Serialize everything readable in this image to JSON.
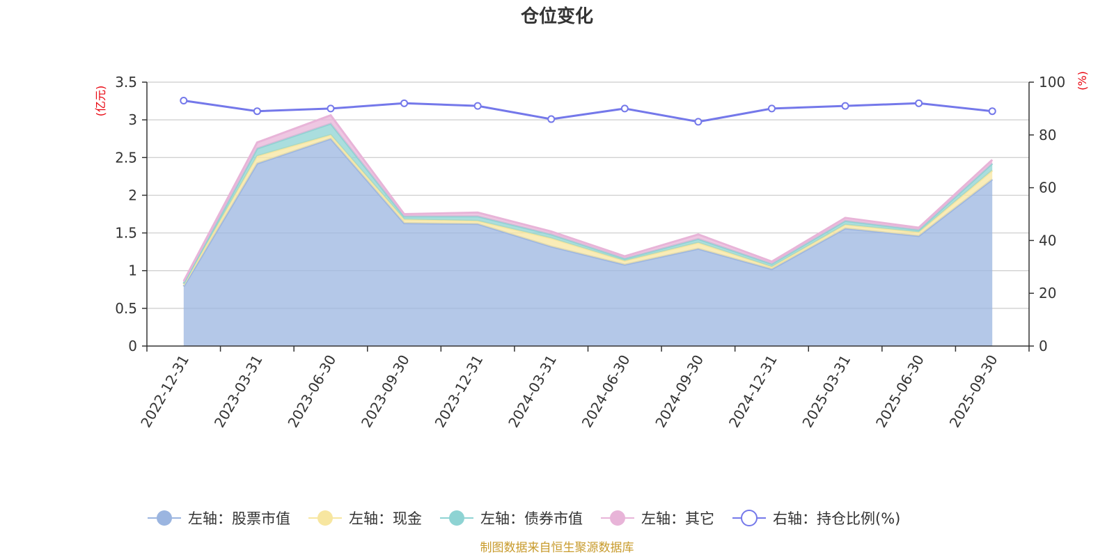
{
  "chart_data": {
    "type": "area",
    "title": "仓位变化",
    "left_axis_unit": "(亿元)",
    "right_axis_unit": "(%)",
    "categories": [
      "2022-12-31",
      "2023-03-31",
      "2023-06-30",
      "2023-09-30",
      "2023-12-31",
      "2024-03-31",
      "2024-06-30",
      "2024-09-30",
      "2024-12-31",
      "2025-03-31",
      "2025-06-30",
      "2025-09-30"
    ],
    "y_left": {
      "min": 0,
      "max": 3.5,
      "ticks": [
        "0",
        "0.5",
        "1",
        "1.5",
        "2",
        "2.5",
        "3",
        "3.5"
      ]
    },
    "y_right": {
      "min": 0,
      "max": 100,
      "ticks": [
        "0",
        "20",
        "40",
        "60",
        "80",
        "100"
      ]
    },
    "grid": true,
    "legend_position": "bottom",
    "series": [
      {
        "name": "左轴：股票市值",
        "axis": "left",
        "stack": true,
        "color": "#9bb5e0",
        "values": [
          0.79,
          2.42,
          2.75,
          1.63,
          1.62,
          1.32,
          1.08,
          1.29,
          1.02,
          1.56,
          1.46,
          2.21
        ]
      },
      {
        "name": "左轴：现金",
        "axis": "left",
        "stack": true,
        "color": "#f7e6a0",
        "values": [
          0.03,
          0.1,
          0.05,
          0.05,
          0.04,
          0.11,
          0.05,
          0.08,
          0.03,
          0.05,
          0.05,
          0.12
        ]
      },
      {
        "name": "左轴：债券市值",
        "axis": "left",
        "stack": true,
        "color": "#8ed3d3",
        "values": [
          0.01,
          0.1,
          0.15,
          0.04,
          0.06,
          0.05,
          0.03,
          0.05,
          0.04,
          0.05,
          0.03,
          0.09
        ]
      },
      {
        "name": "左轴：其它",
        "axis": "left",
        "stack": true,
        "color": "#e8b4d8",
        "values": [
          0.03,
          0.08,
          0.11,
          0.03,
          0.05,
          0.04,
          0.03,
          0.06,
          0.03,
          0.04,
          0.03,
          0.05
        ]
      },
      {
        "name": "右轴：持仓比例(%)",
        "axis": "right",
        "stack": false,
        "type": "line",
        "color": "#7478ea",
        "values": [
          93,
          89,
          90,
          92,
          91,
          86,
          90,
          85,
          90,
          91,
          92,
          89
        ]
      }
    ]
  },
  "footer": {
    "source": "制图数据来自恒生聚源数据库"
  }
}
